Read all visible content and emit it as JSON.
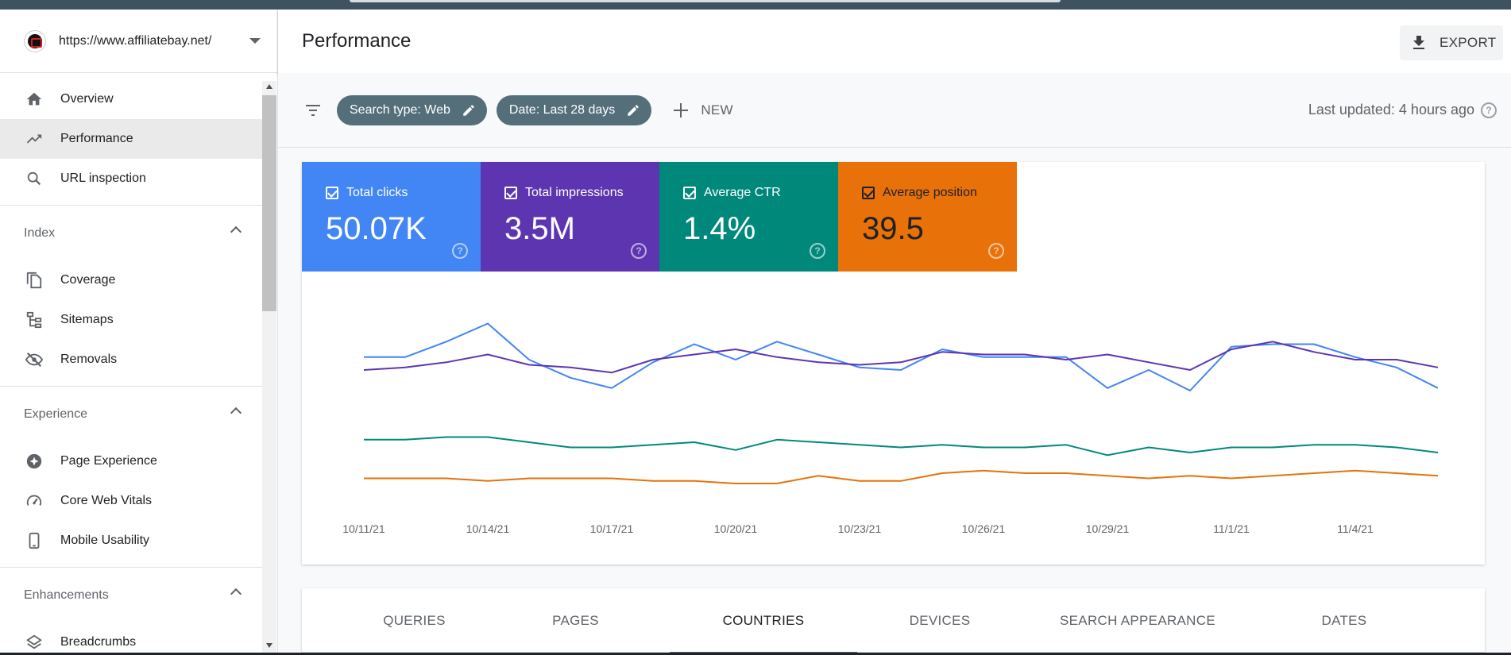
{
  "property": {
    "url": "https://www.affiliatebay.net/"
  },
  "header": {
    "title": "Performance",
    "export_label": "EXPORT"
  },
  "sidebar": {
    "items": [
      {
        "label": "Overview",
        "icon": "home-icon"
      },
      {
        "label": "Performance",
        "icon": "trending-up-icon",
        "active": true
      },
      {
        "label": "URL inspection",
        "icon": "search-icon"
      }
    ],
    "sections": [
      {
        "title": "Index",
        "items": [
          {
            "label": "Coverage",
            "icon": "file-copy-icon"
          },
          {
            "label": "Sitemaps",
            "icon": "sitemap-icon"
          },
          {
            "label": "Removals",
            "icon": "eye-off-icon"
          }
        ]
      },
      {
        "title": "Experience",
        "items": [
          {
            "label": "Page Experience",
            "icon": "star-badge-icon"
          },
          {
            "label": "Core Web Vitals",
            "icon": "gauge-icon"
          },
          {
            "label": "Mobile Usability",
            "icon": "smartphone-icon"
          }
        ]
      },
      {
        "title": "Enhancements",
        "items": [
          {
            "label": "Breadcrumbs",
            "icon": "layers-icon"
          }
        ]
      }
    ]
  },
  "filters": {
    "chips": [
      "Search type: Web",
      "Date: Last 28 days"
    ],
    "new_label": "NEW",
    "last_updated": "Last updated: 4 hours ago"
  },
  "metrics": [
    {
      "label": "Total clicks",
      "value": "50.07K",
      "color": "#4285f4"
    },
    {
      "label": "Total impressions",
      "value": "3.5M",
      "color": "#5e35b1"
    },
    {
      "label": "Average CTR",
      "value": "1.4%",
      "color": "#00897b"
    },
    {
      "label": "Average position",
      "value": "39.5",
      "color": "#e8710a"
    }
  ],
  "chart_data": {
    "type": "line",
    "x_tick_labels": [
      "10/11/21",
      "10/14/21",
      "10/17/21",
      "10/20/21",
      "10/23/21",
      "10/26/21",
      "10/29/21",
      "11/1/21",
      "11/4/21"
    ],
    "series": [
      {
        "name": "Total clicks",
        "color": "#4285f4",
        "values": [
          73,
          73,
          79,
          86,
          72,
          65,
          61,
          71,
          78,
          72,
          79,
          74,
          69,
          68,
          76,
          73,
          73,
          73,
          61,
          68,
          60,
          77,
          78,
          78,
          73,
          69,
          61
        ]
      },
      {
        "name": "Total impressions",
        "color": "#5e35b1",
        "values": [
          68,
          69,
          71,
          74,
          70,
          69,
          67,
          72,
          74,
          76,
          73,
          71,
          70,
          71,
          75,
          74,
          74,
          72,
          74,
          71,
          68,
          76,
          79,
          75,
          72,
          72,
          69
        ]
      },
      {
        "name": "Average CTR",
        "color": "#00897b",
        "values": [
          41,
          41,
          42,
          42,
          40,
          38,
          38,
          39,
          40,
          37,
          41,
          40,
          39,
          38,
          39,
          38,
          38,
          39,
          35,
          38,
          36,
          38,
          38,
          39,
          39,
          38,
          36
        ]
      },
      {
        "name": "Average position",
        "color": "#e8710a",
        "values": [
          26,
          26,
          26,
          25,
          26,
          26,
          26,
          25,
          25,
          24,
          24,
          27,
          25,
          25,
          28,
          29,
          28,
          28,
          27,
          26,
          27,
          26,
          27,
          28,
          29,
          28,
          27
        ]
      }
    ],
    "ylim": [
      0,
      100
    ],
    "grid": false
  },
  "tabs": [
    {
      "label": "QUERIES"
    },
    {
      "label": "PAGES"
    },
    {
      "label": "COUNTRIES",
      "active": true
    },
    {
      "label": "DEVICES"
    },
    {
      "label": "SEARCH APPEARANCE"
    },
    {
      "label": "DATES"
    }
  ]
}
